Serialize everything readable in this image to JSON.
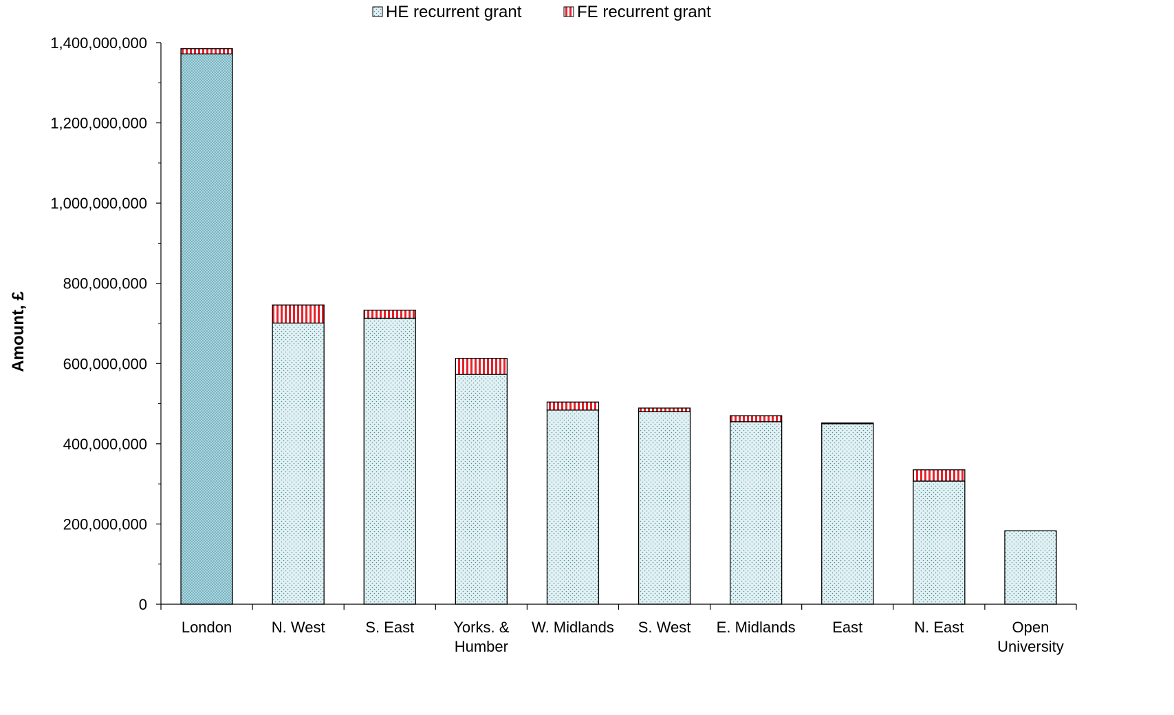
{
  "chart_data": {
    "type": "bar",
    "stacked": true,
    "title": "",
    "xlabel": "",
    "ylabel": "Amount, £",
    "ylim": [
      0,
      1400000000
    ],
    "ytick_step": 200000000,
    "ytick_labels": [
      "0",
      "200,000,000",
      "400,000,000",
      "600,000,000",
      "800,000,000",
      "1,000,000,000",
      "1,200,000,000",
      "1,400,000,000"
    ],
    "categories": [
      [
        "London"
      ],
      [
        "N. West"
      ],
      [
        "S. East"
      ],
      [
        "Yorks. &",
        "Humber"
      ],
      [
        "W. Midlands"
      ],
      [
        "S. West"
      ],
      [
        "E. Midlands"
      ],
      [
        "East"
      ],
      [
        "N. East"
      ],
      [
        "Open",
        "University"
      ]
    ],
    "series": [
      {
        "name": "HE recurrent grant",
        "pattern": "dots",
        "color": "#dff0f3",
        "values": [
          1372000000,
          701000000,
          713000000,
          573000000,
          484000000,
          480000000,
          455000000,
          450000000,
          307000000,
          183000000
        ]
      },
      {
        "name": "FE recurrent grant",
        "pattern": "vertical-stripes",
        "color": "#e8202a",
        "values": [
          13000000,
          45000000,
          20000000,
          40000000,
          20000000,
          9000000,
          15000000,
          2000000,
          28000000,
          0
        ]
      }
    ],
    "highlight": {
      "category_index": 0,
      "color": "#a9d8e2"
    },
    "grid": false,
    "legend": "top-center"
  }
}
